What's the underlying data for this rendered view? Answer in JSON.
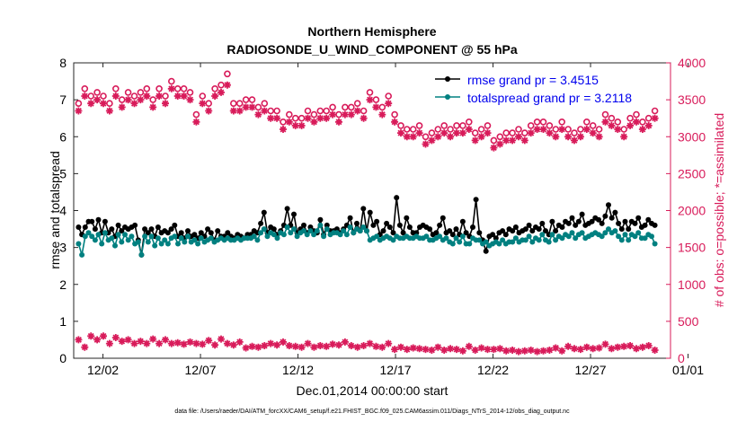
{
  "chart_data": {
    "type": "line",
    "title": "Northern Hemisphere",
    "subtitle": "RADIOSONDE_U_WIND_COMPONENT @ 55 hPa",
    "xlabel": "Dec.01,2014 00:00:00 start",
    "ylabel": "rmse and totalspread",
    "y2label": "# of obs: o=possible; *=assimilated",
    "footnote": "data file: /Users/raeder/DAI/ATM_forcXX/CAM6_setup/f.e21.FHIST_BGC.f09_025.CAM6assim.011/Diags_NTrS_2014-12/obs_diag_output.nc",
    "xlim": [
      0.5,
      31.1
    ],
    "ylim": [
      0,
      8
    ],
    "y2lim": [
      0,
      4000
    ],
    "xticks": [
      2,
      7,
      12,
      17,
      22,
      27,
      32
    ],
    "xticklabels": [
      "12/02",
      "12/07",
      "12/12",
      "12/17",
      "12/22",
      "12/27",
      "01/01"
    ],
    "yticks": [
      0,
      1,
      2,
      3,
      4,
      5,
      6,
      7,
      8
    ],
    "yticklabels": [
      "0",
      "1",
      "2",
      "3",
      "4",
      "5",
      "6",
      "7",
      "8"
    ],
    "y2ticks": [
      0,
      500,
      1000,
      1500,
      2000,
      2500,
      3000,
      3500,
      4000
    ],
    "y2ticklabels": [
      "0",
      "500",
      "1000",
      "1500",
      "2000",
      "2500",
      "3000",
      "3500",
      "4000"
    ],
    "legend": [
      "rmse grand pr = 3.4515",
      "totalspread grand pr = 3.2118"
    ],
    "legend_loc": "top-right",
    "x_step_days": 0.25,
    "x_start": 0.75,
    "series": [
      {
        "name": "rmse",
        "axis": "left",
        "color": "#000000",
        "marker": "filled-circle",
        "values": [
          3.55,
          3.35,
          3.55,
          3.7,
          3.7,
          3.5,
          3.75,
          3.4,
          3.7,
          3.4,
          3.5,
          3.3,
          3.6,
          3.45,
          3.55,
          3.5,
          3.55,
          3.6,
          3.2,
          2.8,
          3.5,
          3.4,
          3.5,
          3.3,
          3.55,
          3.4,
          3.45,
          3.4,
          3.5,
          3.6,
          3.3,
          3.4,
          3.25,
          3.45,
          3.3,
          3.35,
          3.25,
          3.4,
          3.3,
          3.5,
          3.4,
          3.2,
          3.45,
          3.3,
          3.3,
          3.4,
          3.3,
          3.25,
          3.35,
          3.3,
          3.25,
          3.35,
          3.35,
          3.45,
          3.4,
          3.65,
          3.95,
          3.4,
          3.55,
          3.5,
          3.35,
          3.45,
          3.6,
          4.05,
          3.6,
          3.9,
          3.4,
          3.5,
          3.6,
          3.4,
          3.55,
          3.45,
          3.4,
          3.75,
          3.35,
          3.6,
          3.45,
          3.45,
          3.5,
          3.4,
          3.5,
          3.6,
          3.8,
          3.4,
          3.65,
          3.45,
          4.05,
          3.45,
          3.95,
          3.6,
          3.7,
          3.35,
          3.45,
          3.65,
          3.55,
          3.4,
          4.35,
          3.6,
          3.4,
          3.8,
          3.55,
          3.4,
          3.4,
          3.55,
          3.6,
          3.55,
          3.5,
          3.35,
          3.4,
          3.6,
          3.8,
          3.4,
          3.45,
          3.35,
          3.5,
          3.35,
          3.7,
          3.4,
          3.3,
          3.55,
          4.3,
          3.4,
          3.2,
          2.9,
          3.3,
          3.35,
          3.25,
          3.4,
          3.45,
          3.35,
          3.5,
          3.45,
          3.55,
          3.4,
          3.45,
          3.5,
          3.6,
          3.45,
          3.55,
          3.5,
          3.65,
          3.45,
          3.35,
          3.7,
          3.45,
          3.6,
          3.55,
          3.7,
          3.65,
          3.8,
          3.6,
          3.7,
          3.9,
          3.6,
          3.65,
          3.7,
          3.8,
          3.75,
          3.65,
          3.85,
          4.15,
          3.8,
          3.95,
          3.65,
          3.5,
          3.7,
          3.5,
          3.7,
          3.65,
          3.8,
          3.55,
          3.6,
          3.75,
          3.65,
          3.6
        ]
      },
      {
        "name": "totalspread",
        "axis": "left",
        "color": "#008080",
        "marker": "filled-circle",
        "values": [
          3.1,
          2.8,
          3.3,
          3.4,
          3.3,
          3.2,
          3.35,
          3.1,
          3.4,
          3.2,
          3.25,
          3.05,
          3.35,
          3.15,
          3.35,
          3.2,
          3.3,
          3.1,
          3.15,
          2.8,
          3.3,
          3.15,
          3.3,
          3.05,
          3.25,
          3.1,
          3.2,
          3.1,
          3.25,
          3.3,
          3.1,
          3.25,
          3.15,
          3.3,
          3.15,
          3.2,
          3.1,
          3.25,
          3.15,
          3.2,
          3.25,
          3.15,
          3.2,
          3.25,
          3.2,
          3.25,
          3.2,
          3.2,
          3.25,
          3.2,
          3.25,
          3.25,
          3.25,
          3.3,
          3.2,
          3.4,
          3.5,
          3.3,
          3.4,
          3.35,
          3.25,
          3.4,
          3.35,
          3.55,
          3.4,
          3.5,
          3.3,
          3.4,
          3.45,
          3.35,
          3.45,
          3.35,
          3.45,
          3.6,
          3.3,
          3.5,
          3.35,
          3.4,
          3.4,
          3.35,
          3.45,
          3.35,
          3.55,
          3.4,
          3.5,
          3.45,
          3.55,
          3.45,
          3.2,
          3.25,
          3.3,
          3.2,
          3.25,
          3.3,
          3.25,
          3.2,
          3.3,
          3.25,
          3.25,
          3.3,
          3.25,
          3.25,
          3.3,
          3.25,
          3.25,
          3.3,
          3.2,
          3.2,
          3.25,
          3.3,
          3.2,
          3.25,
          3.15,
          3.1,
          3.25,
          3.15,
          3.3,
          3.1,
          3.1,
          3.25,
          3.2,
          3.2,
          3.1,
          3.15,
          3.05,
          3.1,
          3.15,
          3.1,
          3.2,
          3.1,
          3.15,
          3.15,
          3.25,
          3.15,
          3.2,
          3.2,
          3.3,
          3.15,
          3.25,
          3.2,
          3.35,
          3.2,
          3.15,
          3.35,
          3.2,
          3.3,
          3.25,
          3.35,
          3.3,
          3.4,
          3.25,
          3.35,
          3.4,
          3.25,
          3.3,
          3.35,
          3.4,
          3.35,
          3.3,
          3.4,
          3.5,
          3.4,
          3.45,
          3.3,
          3.2,
          3.35,
          3.2,
          3.35,
          3.3,
          3.4,
          3.25,
          3.25,
          3.35,
          3.3,
          3.1
        ]
      },
      {
        "name": "possible",
        "axis": "right",
        "color": "#d81b5a",
        "marker": "open-circle",
        "values": [
          3450,
          3650,
          3550,
          3600,
          3550,
          3450,
          3650,
          3500,
          3600,
          3550,
          3600,
          3650,
          3500,
          3650,
          3550,
          3750,
          3650,
          3650,
          3600,
          3300,
          3550,
          3450,
          3650,
          3700,
          3850,
          3450,
          3450,
          3500,
          3500,
          3400,
          3450,
          3350,
          3350,
          3200,
          3300,
          3250,
          3250,
          3350,
          3300,
          3350,
          3350,
          3400,
          3300,
          3400,
          3400,
          3450,
          3350,
          3600,
          3500,
          3400,
          3550,
          3300,
          3150,
          3100,
          3100,
          3150,
          3000,
          3050,
          3100,
          3150,
          3100,
          3150,
          3150,
          3200,
          3050,
          3100,
          3150,
          2950,
          3000,
          3050,
          3050,
          3100,
          3050,
          3150,
          3200,
          3200,
          3150,
          3100,
          3200,
          3100,
          3050,
          3100,
          3200,
          3150,
          3100,
          3300,
          3250,
          3200,
          3100,
          3250,
          3300,
          3200,
          3250,
          3350
        ]
      },
      {
        "name": "assimilated",
        "axis": "right",
        "color": "#d81b5a",
        "marker": "asterisk",
        "values": [
          3350,
          3550,
          3450,
          3500,
          3450,
          3350,
          3550,
          3400,
          3500,
          3450,
          3500,
          3550,
          3400,
          3550,
          3450,
          3650,
          3550,
          3550,
          3500,
          3200,
          3450,
          3350,
          3550,
          3600,
          3700,
          3350,
          3350,
          3400,
          3400,
          3300,
          3350,
          3250,
          3250,
          3100,
          3200,
          3150,
          3150,
          3250,
          3200,
          3250,
          3250,
          3300,
          3200,
          3300,
          3300,
          3350,
          3250,
          3500,
          3400,
          3300,
          3450,
          3200,
          3050,
          3000,
          3000,
          3050,
          2900,
          2950,
          3000,
          3050,
          3000,
          3050,
          3050,
          3100,
          2950,
          3000,
          3050,
          2850,
          2900,
          2950,
          2950,
          3000,
          2950,
          3050,
          3100,
          3100,
          3050,
          3000,
          3100,
          3000,
          2950,
          3000,
          3100,
          3050,
          3000,
          3200,
          3150,
          3100,
          3000,
          3150,
          3200,
          3100,
          3150,
          3250
        ]
      },
      {
        "name": "rmse obs count low",
        "axis": "right",
        "color": "#d81b5a",
        "marker": "asterisk-bottom",
        "values": [
          250,
          150,
          300,
          250,
          300,
          200,
          280,
          230,
          250,
          200,
          230,
          200,
          260,
          200,
          250,
          200,
          210,
          190,
          220,
          200,
          190,
          240,
          180,
          260,
          200,
          180,
          220,
          140,
          160,
          150,
          170,
          200,
          180,
          220,
          170,
          160,
          150,
          200,
          150,
          170,
          160,
          190,
          180,
          220,
          170,
          150,
          170,
          200,
          160,
          150,
          200,
          120,
          150,
          120,
          140,
          130,
          120,
          110,
          150,
          110,
          130,
          120,
          100,
          160,
          110,
          140,
          120,
          120,
          130,
          100,
          110,
          90,
          100,
          110,
          90,
          100,
          110,
          140,
          100,
          160,
          130,
          120,
          150,
          130,
          140,
          190,
          130,
          150,
          160,
          170,
          130,
          150,
          170,
          110
        ]
      }
    ]
  }
}
